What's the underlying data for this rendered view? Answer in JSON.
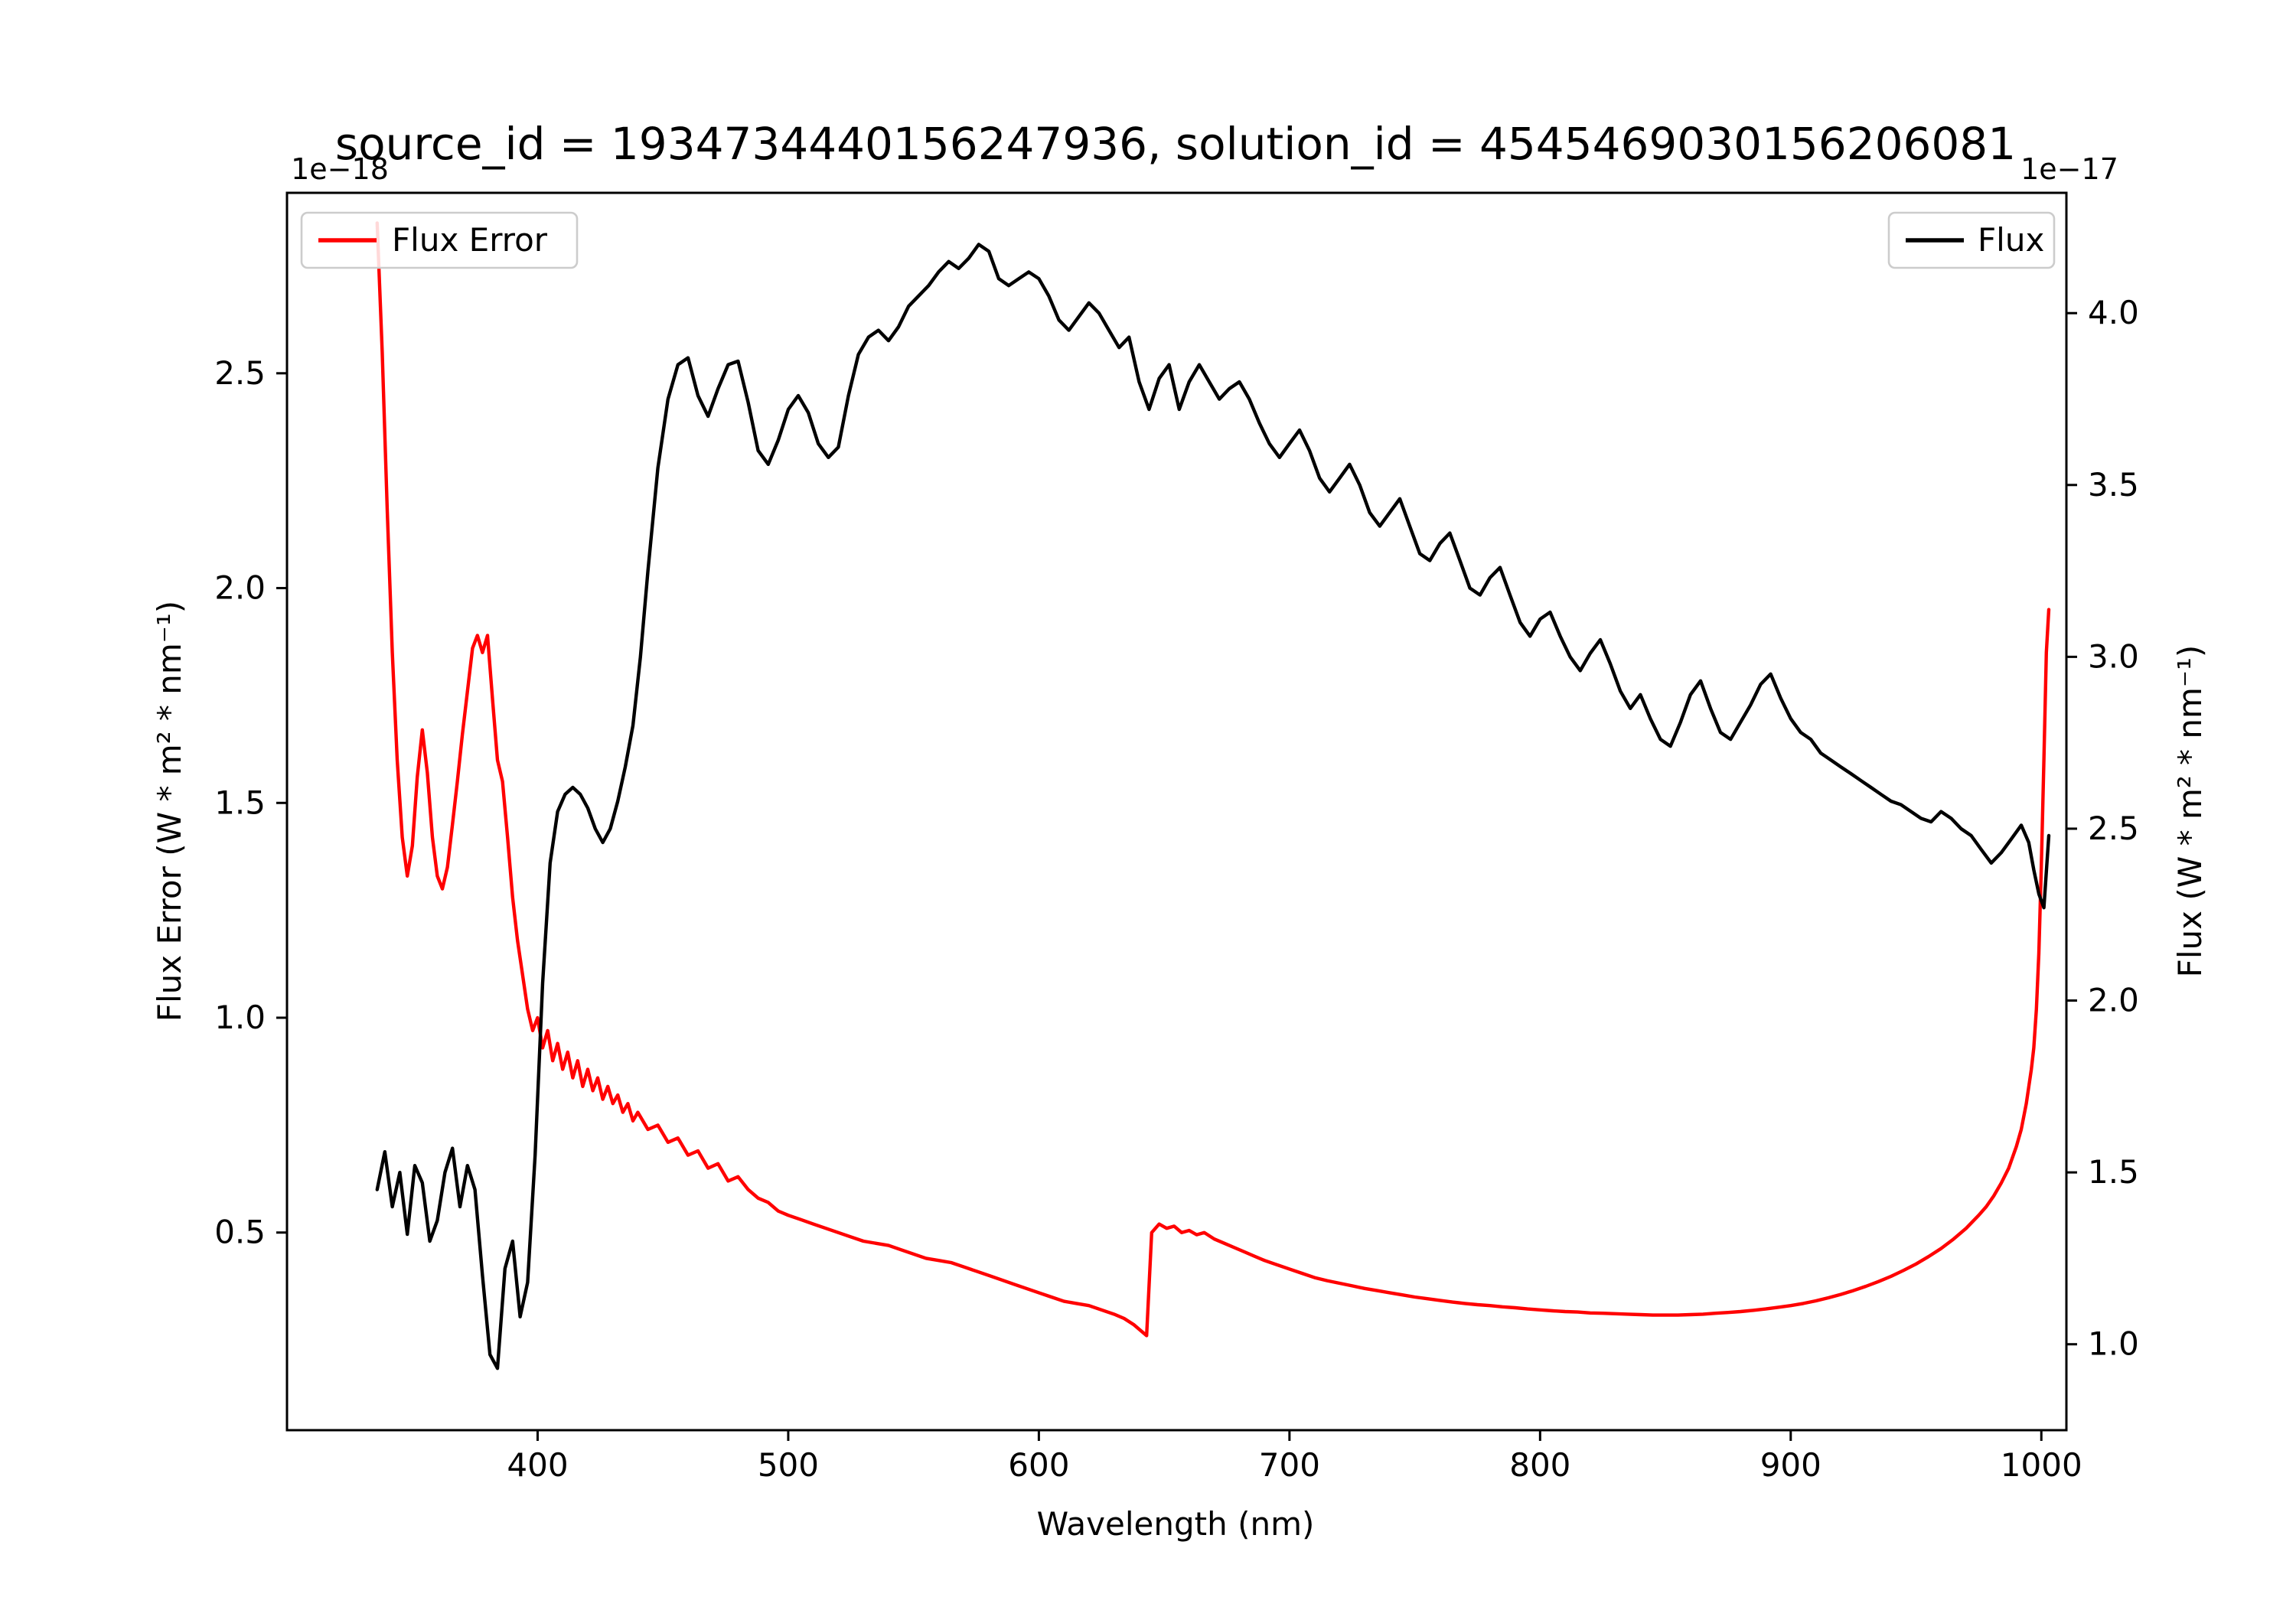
{
  "chart_data": {
    "type": "line",
    "title": "source_id = 1934734440156247936, solution_id = 4545469030156206081",
    "xlabel": "Wavelength (nm)",
    "xlim": [
      300,
      1010
    ],
    "x_ticks": [
      400,
      500,
      600,
      700,
      800,
      900,
      1000
    ],
    "x_tick_labels": [
      "400",
      "500",
      "600",
      "700",
      "800",
      "900",
      "1000"
    ],
    "grid": false,
    "background": "#ffffff",
    "left_axis": {
      "label": "Flux Error (W * m² * nm⁻¹)",
      "offset_text": "1e−18",
      "color": "#ff0000",
      "lim": [
        0.04,
        2.92
      ],
      "ticks": [
        0.5,
        1.0,
        1.5,
        2.0,
        2.5
      ],
      "tick_labels": [
        "0.5",
        "1.0",
        "1.5",
        "2.0",
        "2.5"
      ]
    },
    "right_axis": {
      "label": "Flux (W * m² * nm⁻¹)",
      "offset_text": "1e−17",
      "color": "#000000",
      "lim": [
        0.75,
        4.35
      ],
      "ticks": [
        1.0,
        1.5,
        2.0,
        2.5,
        3.0,
        3.5,
        4.0
      ],
      "tick_labels": [
        "1.0",
        "1.5",
        "2.0",
        "2.5",
        "3.0",
        "3.5",
        "4.0"
      ]
    },
    "legends": [
      {
        "label": "Flux Error",
        "color": "#ff0000",
        "position": "upper-left"
      },
      {
        "label": "Flux",
        "color": "#000000",
        "position": "upper-right"
      }
    ],
    "series": [
      {
        "name": "Flux Error",
        "axis": "left",
        "color": "#ff0000",
        "units": "1e-18 W * m^2 * nm^-1",
        "x": [
          336,
          338,
          340,
          342,
          344,
          346,
          348,
          350,
          352,
          354,
          356,
          358,
          360,
          362,
          364,
          366,
          368,
          370,
          372,
          374,
          376,
          378,
          380,
          382,
          384,
          386,
          388,
          390,
          392,
          394,
          396,
          398,
          400,
          402,
          404,
          406,
          408,
          410,
          412,
          414,
          416,
          418,
          420,
          422,
          424,
          426,
          428,
          430,
          432,
          434,
          436,
          438,
          440,
          444,
          448,
          452,
          456,
          460,
          464,
          468,
          472,
          476,
          480,
          484,
          488,
          492,
          496,
          500,
          505,
          510,
          515,
          520,
          525,
          530,
          535,
          540,
          545,
          550,
          555,
          560,
          565,
          570,
          575,
          580,
          585,
          590,
          595,
          600,
          605,
          610,
          615,
          620,
          625,
          630,
          634,
          638,
          641,
          643,
          645,
          648,
          651,
          654,
          657,
          660,
          663,
          666,
          670,
          674,
          678,
          682,
          686,
          690,
          695,
          700,
          705,
          710,
          715,
          720,
          725,
          730,
          735,
          740,
          745,
          750,
          755,
          760,
          765,
          770,
          775,
          780,
          785,
          790,
          795,
          800,
          805,
          810,
          815,
          820,
          825,
          830,
          835,
          840,
          845,
          850,
          855,
          860,
          865,
          870,
          875,
          880,
          885,
          890,
          895,
          900,
          905,
          910,
          915,
          920,
          925,
          930,
          935,
          940,
          945,
          950,
          955,
          960,
          965,
          970,
          975,
          978,
          981,
          984,
          987,
          990,
          992,
          994,
          996,
          997,
          998,
          999,
          1000,
          1001,
          1002,
          1003
        ],
        "y": [
          2.85,
          2.55,
          2.18,
          1.85,
          1.6,
          1.42,
          1.33,
          1.4,
          1.56,
          1.67,
          1.57,
          1.42,
          1.33,
          1.3,
          1.35,
          1.45,
          1.55,
          1.66,
          1.76,
          1.86,
          1.89,
          1.85,
          1.89,
          1.74,
          1.6,
          1.55,
          1.42,
          1.28,
          1.18,
          1.1,
          1.02,
          0.97,
          1.0,
          0.93,
          0.97,
          0.9,
          0.94,
          0.88,
          0.92,
          0.86,
          0.9,
          0.84,
          0.88,
          0.83,
          0.86,
          0.81,
          0.84,
          0.8,
          0.82,
          0.78,
          0.8,
          0.76,
          0.78,
          0.74,
          0.75,
          0.71,
          0.72,
          0.68,
          0.69,
          0.65,
          0.66,
          0.62,
          0.63,
          0.6,
          0.58,
          0.57,
          0.55,
          0.54,
          0.53,
          0.52,
          0.51,
          0.5,
          0.49,
          0.48,
          0.475,
          0.47,
          0.46,
          0.45,
          0.44,
          0.435,
          0.43,
          0.42,
          0.41,
          0.4,
          0.39,
          0.38,
          0.37,
          0.36,
          0.35,
          0.34,
          0.335,
          0.33,
          0.32,
          0.31,
          0.3,
          0.285,
          0.27,
          0.26,
          0.5,
          0.52,
          0.51,
          0.515,
          0.5,
          0.505,
          0.495,
          0.5,
          0.485,
          0.475,
          0.465,
          0.455,
          0.445,
          0.435,
          0.425,
          0.415,
          0.405,
          0.395,
          0.388,
          0.382,
          0.376,
          0.37,
          0.365,
          0.36,
          0.355,
          0.35,
          0.346,
          0.342,
          0.338,
          0.335,
          0.332,
          0.33,
          0.327,
          0.325,
          0.322,
          0.32,
          0.318,
          0.316,
          0.315,
          0.313,
          0.312,
          0.311,
          0.31,
          0.309,
          0.308,
          0.308,
          0.308,
          0.309,
          0.31,
          0.312,
          0.314,
          0.316,
          0.319,
          0.322,
          0.326,
          0.33,
          0.335,
          0.341,
          0.348,
          0.356,
          0.365,
          0.375,
          0.386,
          0.398,
          0.412,
          0.427,
          0.444,
          0.463,
          0.485,
          0.51,
          0.54,
          0.56,
          0.585,
          0.615,
          0.65,
          0.7,
          0.74,
          0.8,
          0.88,
          0.93,
          1.02,
          1.15,
          1.35,
          1.6,
          1.85,
          1.95
        ]
      },
      {
        "name": "Flux",
        "axis": "right",
        "color": "#000000",
        "units": "1e-17 W * m^2 * nm^-1",
        "x": [
          336,
          339,
          342,
          345,
          348,
          351,
          354,
          357,
          360,
          363,
          366,
          369,
          372,
          375,
          378,
          381,
          384,
          387,
          390,
          393,
          396,
          399,
          402,
          405,
          408,
          411,
          414,
          417,
          420,
          423,
          426,
          429,
          432,
          435,
          438,
          441,
          444,
          448,
          452,
          456,
          460,
          464,
          468,
          472,
          476,
          480,
          484,
          488,
          492,
          496,
          500,
          504,
          508,
          512,
          516,
          520,
          524,
          528,
          532,
          536,
          540,
          544,
          548,
          552,
          556,
          560,
          564,
          568,
          572,
          576,
          580,
          584,
          588,
          592,
          596,
          600,
          604,
          608,
          612,
          616,
          620,
          624,
          628,
          632,
          636,
          640,
          644,
          648,
          652,
          656,
          660,
          664,
          668,
          672,
          676,
          680,
          684,
          688,
          692,
          696,
          700,
          704,
          708,
          712,
          716,
          720,
          724,
          728,
          732,
          736,
          740,
          744,
          748,
          752,
          756,
          760,
          764,
          768,
          772,
          776,
          780,
          784,
          788,
          792,
          796,
          800,
          804,
          808,
          812,
          816,
          820,
          824,
          828,
          832,
          836,
          840,
          844,
          848,
          852,
          856,
          860,
          864,
          868,
          872,
          876,
          880,
          884,
          888,
          892,
          896,
          900,
          904,
          908,
          912,
          916,
          920,
          924,
          928,
          932,
          936,
          940,
          944,
          948,
          952,
          956,
          960,
          964,
          968,
          972,
          976,
          980,
          984,
          988,
          992,
          995,
          997,
          999,
          1001,
          1003
        ],
        "y": [
          1.45,
          1.56,
          1.4,
          1.5,
          1.32,
          1.52,
          1.47,
          1.3,
          1.36,
          1.5,
          1.57,
          1.4,
          1.52,
          1.45,
          1.2,
          0.97,
          0.93,
          1.22,
          1.3,
          1.08,
          1.18,
          1.55,
          2.05,
          2.4,
          2.55,
          2.6,
          2.62,
          2.6,
          2.56,
          2.5,
          2.46,
          2.5,
          2.58,
          2.68,
          2.8,
          3.0,
          3.25,
          3.55,
          3.75,
          3.85,
          3.87,
          3.76,
          3.7,
          3.78,
          3.85,
          3.86,
          3.74,
          3.6,
          3.56,
          3.63,
          3.72,
          3.76,
          3.71,
          3.62,
          3.58,
          3.61,
          3.76,
          3.88,
          3.93,
          3.95,
          3.92,
          3.96,
          4.02,
          4.05,
          4.08,
          4.12,
          4.15,
          4.13,
          4.16,
          4.2,
          4.18,
          4.1,
          4.08,
          4.1,
          4.12,
          4.1,
          4.05,
          3.98,
          3.95,
          3.99,
          4.03,
          4.0,
          3.95,
          3.9,
          3.93,
          3.8,
          3.72,
          3.81,
          3.85,
          3.72,
          3.8,
          3.85,
          3.8,
          3.75,
          3.78,
          3.8,
          3.75,
          3.68,
          3.62,
          3.58,
          3.62,
          3.66,
          3.6,
          3.52,
          3.48,
          3.52,
          3.56,
          3.5,
          3.42,
          3.38,
          3.42,
          3.46,
          3.38,
          3.3,
          3.28,
          3.33,
          3.36,
          3.28,
          3.2,
          3.18,
          3.23,
          3.26,
          3.18,
          3.1,
          3.06,
          3.11,
          3.13,
          3.06,
          3.0,
          2.96,
          3.01,
          3.05,
          2.98,
          2.9,
          2.85,
          2.89,
          2.82,
          2.76,
          2.74,
          2.81,
          2.89,
          2.93,
          2.85,
          2.78,
          2.76,
          2.81,
          2.86,
          2.92,
          2.95,
          2.88,
          2.82,
          2.78,
          2.76,
          2.72,
          2.7,
          2.68,
          2.66,
          2.64,
          2.62,
          2.6,
          2.58,
          2.57,
          2.55,
          2.53,
          2.52,
          2.55,
          2.53,
          2.5,
          2.48,
          2.44,
          2.4,
          2.43,
          2.47,
          2.51,
          2.46,
          2.38,
          2.31,
          2.27,
          2.48
        ]
      }
    ]
  }
}
